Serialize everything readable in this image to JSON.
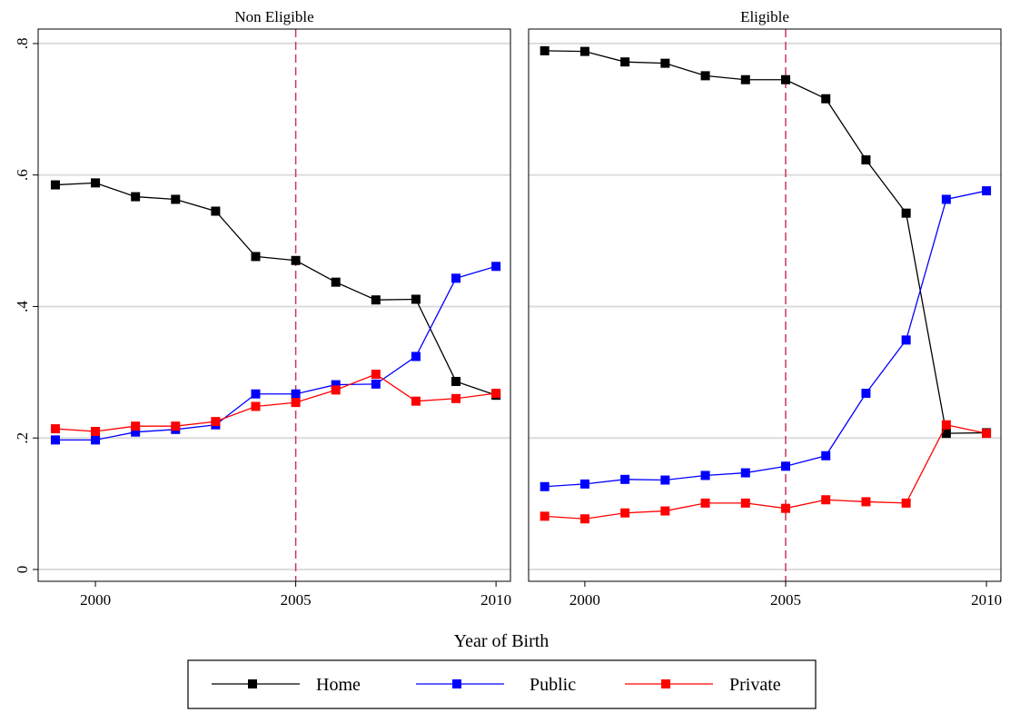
{
  "chart_data": [
    {
      "type": "line",
      "title": "Non Eligible",
      "x": [
        1999,
        2000,
        2001,
        2002,
        2003,
        2004,
        2005,
        2006,
        2007,
        2008,
        2009,
        2010
      ],
      "series": [
        {
          "name": "Home",
          "color": "#000000",
          "values": [
            0.585,
            0.588,
            0.567,
            0.563,
            0.545,
            0.476,
            0.47,
            0.437,
            0.41,
            0.411,
            0.286,
            0.265
          ]
        },
        {
          "name": "Public",
          "color": "#0000ff",
          "values": [
            0.197,
            0.197,
            0.209,
            0.213,
            0.22,
            0.267,
            0.267,
            0.281,
            0.282,
            0.324,
            0.443,
            0.461
          ]
        },
        {
          "name": "Private",
          "color": "#ff0000",
          "values": [
            0.214,
            0.21,
            0.218,
            0.218,
            0.225,
            0.248,
            0.254,
            0.273,
            0.297,
            0.256,
            0.26,
            0.268
          ]
        }
      ],
      "xlim": [
        1998.57,
        2010.36
      ],
      "xticks": [
        2000,
        2005,
        2010
      ],
      "ylim": [
        -0.018,
        0.822
      ],
      "yticks": [
        0,
        {
          "value": 0.2,
          "label": ".2"
        },
        {
          "value": 0.4,
          "label": ".4"
        },
        {
          "value": 0.6,
          "label": ".6"
        },
        {
          "value": 0.8,
          "label": ".8"
        }
      ],
      "vline": 2005,
      "vline_color": "#c8385a",
      "grid": true
    },
    {
      "type": "line",
      "title": "Eligible",
      "x": [
        1999,
        2000,
        2001,
        2002,
        2003,
        2004,
        2005,
        2006,
        2007,
        2008,
        2009,
        2010
      ],
      "series": [
        {
          "name": "Home",
          "color": "#000000",
          "values": [
            0.789,
            0.788,
            0.772,
            0.77,
            0.751,
            0.745,
            0.745,
            0.716,
            0.623,
            0.542,
            0.207,
            0.208
          ]
        },
        {
          "name": "Public",
          "color": "#0000ff",
          "values": [
            0.126,
            0.13,
            0.137,
            0.136,
            0.143,
            0.147,
            0.157,
            0.173,
            0.268,
            0.349,
            0.563,
            0.576
          ]
        },
        {
          "name": "Private",
          "color": "#ff0000",
          "values": [
            0.081,
            0.077,
            0.086,
            0.089,
            0.101,
            0.101,
            0.093,
            0.106,
            0.103,
            0.101,
            0.22,
            0.207
          ]
        }
      ],
      "xlim": [
        1998.6,
        2010.36
      ],
      "xticks": [
        2000,
        2005,
        2010
      ],
      "ylim": [
        -0.018,
        0.822
      ],
      "vline": 2005,
      "vline_color": "#c8385a",
      "grid": true
    }
  ],
  "xlabel": "Year of Birth"
}
